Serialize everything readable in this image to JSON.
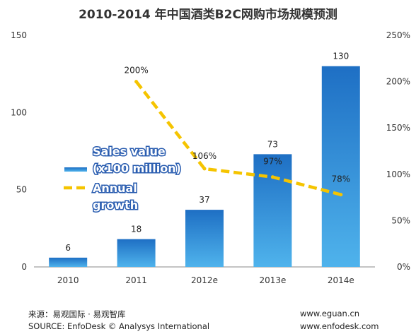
{
  "title": "2010-2014 年中国酒类B2C网购市场规模预测",
  "colors": {
    "bar_top": "#1e6fc4",
    "bar_bottom": "#4fb3ec",
    "line": "#f5c400",
    "legend_text": "#ffffff",
    "legend_outline": "#2a5db0"
  },
  "chart_data": {
    "type": "bar",
    "categories": [
      "2010",
      "2011",
      "2012e",
      "2013e",
      "2014e"
    ],
    "series": [
      {
        "name": "Sales value (x100 million)",
        "type": "bar",
        "axis": "left",
        "values": [
          6,
          18,
          37,
          73,
          130
        ]
      },
      {
        "name": "Annual growth",
        "type": "line",
        "axis": "right",
        "values": [
          null,
          200,
          106,
          97,
          78
        ]
      }
    ],
    "data_labels": {
      "bars": [
        "6",
        "18",
        "37",
        "73",
        "130"
      ],
      "line": [
        "",
        "200%",
        "106%",
        "97%",
        "78%"
      ]
    },
    "y_left": {
      "ylim": [
        0,
        150
      ],
      "ticks": [
        "0",
        "50",
        "100",
        "150"
      ],
      "tick_values": [
        0,
        50,
        100,
        150
      ]
    },
    "y_right": {
      "ylim": [
        0,
        250
      ],
      "ticks": [
        "0%",
        "50%",
        "100%",
        "150%",
        "200%",
        "250%"
      ],
      "tick_values": [
        0,
        50,
        100,
        150,
        200,
        250
      ]
    },
    "legend": {
      "placement": "center-left",
      "items": [
        {
          "lines": [
            "Sales value",
            "(x100 million)"
          ]
        },
        {
          "lines": [
            "Annual",
            "growth"
          ]
        }
      ]
    },
    "grid": false
  },
  "footer": {
    "source_cn": "来源：易观国际 · 易观智库",
    "source_en": "SOURCE: EnfoDesk © Analysys International",
    "url1": "www.eguan.cn",
    "url2": "www.enfodesk.com"
  }
}
